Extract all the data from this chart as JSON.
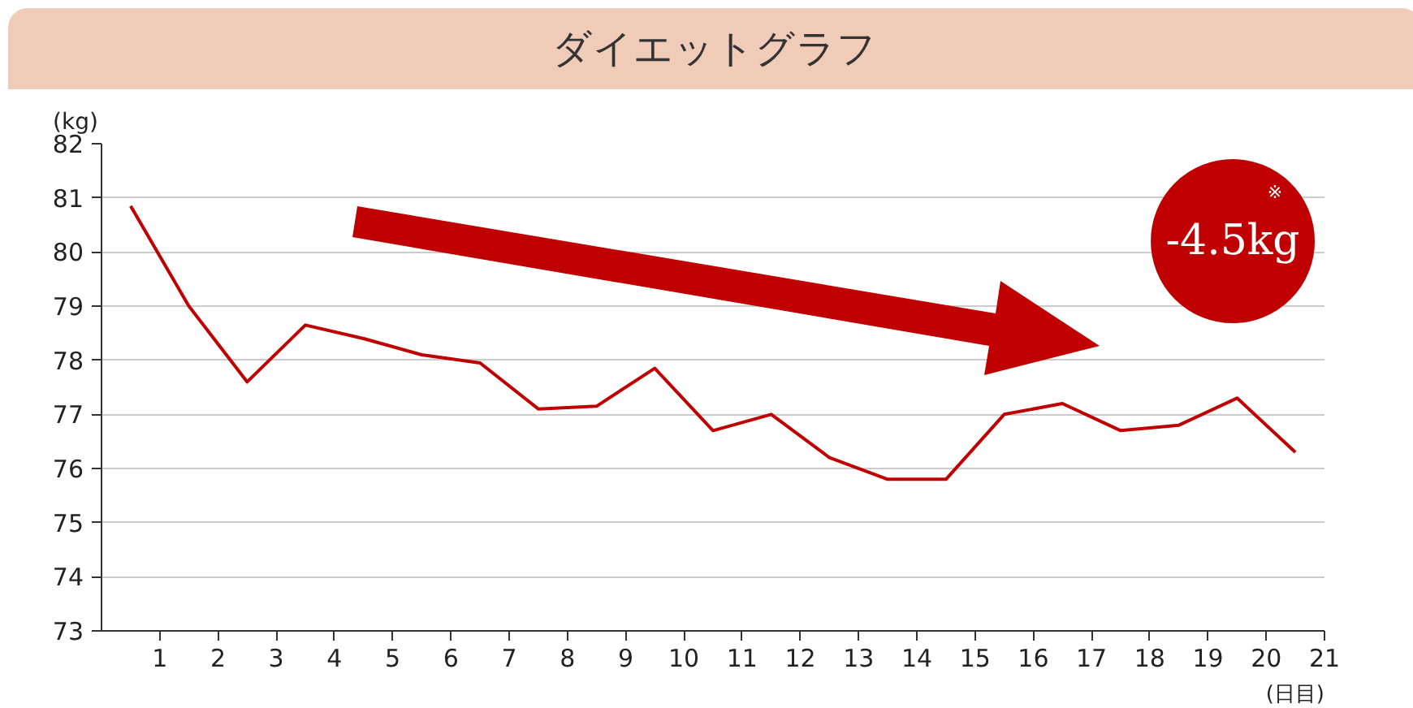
{
  "chart_data": {
    "type": "line",
    "title": "ダイエットグラフ",
    "ylabel": "(kg)",
    "xlabel": "(日目)",
    "x": [
      0.5,
      1.5,
      2.5,
      3.5,
      4.5,
      5.5,
      6.5,
      7.5,
      8.5,
      9.5,
      10.5,
      11.5,
      12.5,
      13.5,
      14.5,
      15.5,
      16.5,
      17.5,
      18.5,
      19.5,
      20.5
    ],
    "series": [
      {
        "color": "#c00000",
        "values": [
          80.85,
          79.0,
          77.6,
          78.65,
          78.4,
          78.1,
          77.95,
          77.1,
          77.15,
          77.85,
          76.7,
          77.0,
          76.2,
          75.8,
          75.8,
          77.0,
          77.2,
          76.7,
          76.8,
          77.3,
          76.3
        ]
      }
    ],
    "xlim": [
      0,
      21
    ],
    "xticks": [
      1,
      2,
      3,
      4,
      5,
      6,
      7,
      8,
      9,
      10,
      11,
      12,
      13,
      14,
      15,
      16,
      17,
      18,
      19,
      20,
      21
    ],
    "ylim": [
      73,
      82
    ],
    "yticks": [
      73,
      74,
      75,
      76,
      77,
      78,
      79,
      80,
      81,
      82
    ],
    "grid": "y",
    "marker": "none",
    "line_style": "solid",
    "annotations": [
      "-4.5kg",
      "※"
    ]
  }
}
